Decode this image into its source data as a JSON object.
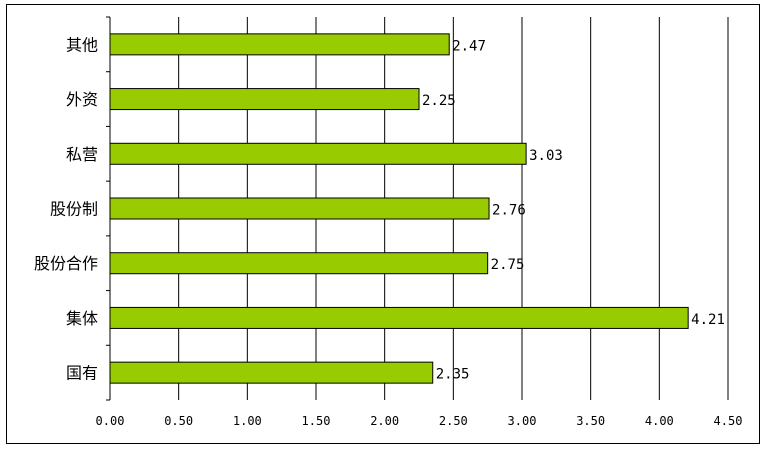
{
  "chart_data": {
    "type": "bar",
    "orientation": "horizontal",
    "categories": [
      "其他",
      "外资",
      "私营",
      "股份制",
      "股份合作",
      "集体",
      "国有"
    ],
    "values": [
      2.47,
      2.25,
      3.03,
      2.76,
      2.75,
      4.21,
      2.35
    ],
    "value_labels": [
      "2.47",
      "2.25",
      "3.03",
      "2.76",
      "2.75",
      "4.21",
      "2.35"
    ],
    "xlim": [
      0,
      4.5
    ],
    "x_ticks": [
      "0.00",
      "0.50",
      "1.00",
      "1.50",
      "2.00",
      "2.50",
      "3.00",
      "3.50",
      "4.00",
      "4.50"
    ],
    "grid": "vertical",
    "legend": "none",
    "colors": {
      "bar_fill": "#99cc00",
      "bar_stroke": "#000000",
      "grid": "#000000"
    }
  }
}
